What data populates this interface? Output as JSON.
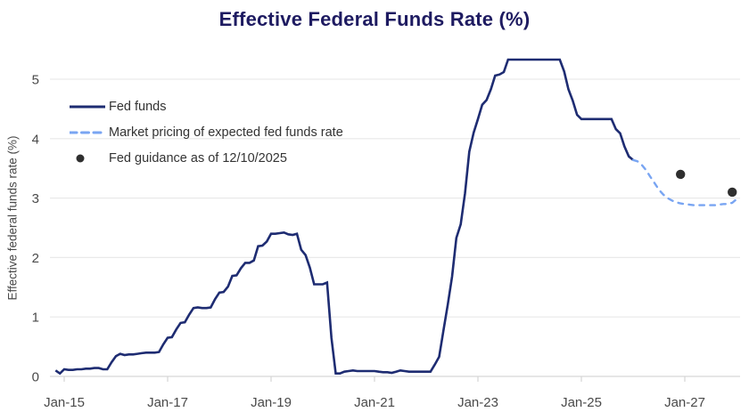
{
  "title": "Effective Federal Funds Rate (%)",
  "y_axis_title": "Effective federal funds rate (%)",
  "legend": {
    "fed_funds": "Fed funds",
    "market_pricing": "Market pricing of expected fed funds rate",
    "fed_guidance": "Fed guidance as of 12/10/2025"
  },
  "colors": {
    "title": "#1e1b61",
    "fed_funds_line": "#1e2c72",
    "market_pricing_line": "#79a5f2",
    "guidance_dot": "#2f2f2f",
    "grid": "#e9e9e9",
    "axis": "#d6d6d6",
    "axis_text": "#4a4a4a"
  },
  "chart_data": {
    "type": "line",
    "title": "Effective Federal Funds Rate (%)",
    "xlabel": "",
    "ylabel": "Effective federal funds rate (%)",
    "ylim": [
      0,
      5.5
    ],
    "x_range": [
      "Nov-2014",
      "Jan-2028"
    ],
    "grid": "horizontal",
    "legend_position": "top-left-inside",
    "x_ticks": [
      {
        "label": "Jan-15",
        "t": 0
      },
      {
        "label": "Jan-17",
        "t": 2
      },
      {
        "label": "Jan-19",
        "t": 4
      },
      {
        "label": "Jan-21",
        "t": 6
      },
      {
        "label": "Jan-23",
        "t": 8
      },
      {
        "label": "Jan-25",
        "t": 10
      },
      {
        "label": "Jan-27",
        "t": 12
      }
    ],
    "y_ticks": [
      0,
      1,
      2,
      3,
      4,
      5
    ],
    "series": [
      {
        "name": "Fed funds",
        "style": "solid",
        "color": "#1e2c72",
        "start": "2014-11",
        "frequency": "monthly",
        "values": [
          0.1,
          0.05,
          0.12,
          0.11,
          0.11,
          0.12,
          0.12,
          0.13,
          0.13,
          0.14,
          0.14,
          0.12,
          0.12,
          0.24,
          0.34,
          0.38,
          0.36,
          0.37,
          0.37,
          0.38,
          0.39,
          0.4,
          0.4,
          0.4,
          0.41,
          0.54,
          0.65,
          0.66,
          0.79,
          0.9,
          0.91,
          1.04,
          1.15,
          1.16,
          1.15,
          1.15,
          1.16,
          1.3,
          1.41,
          1.42,
          1.51,
          1.69,
          1.7,
          1.82,
          1.91,
          1.91,
          1.95,
          2.19,
          2.2,
          2.27,
          2.4,
          2.4,
          2.41,
          2.42,
          2.39,
          2.38,
          2.4,
          2.13,
          2.04,
          1.83,
          1.55,
          1.55,
          1.55,
          1.58,
          0.65,
          0.05,
          0.05,
          0.08,
          0.09,
          0.1,
          0.09,
          0.09,
          0.09,
          0.09,
          0.09,
          0.08,
          0.07,
          0.07,
          0.06,
          0.08,
          0.1,
          0.09,
          0.08,
          0.08,
          0.08,
          0.08,
          0.08,
          0.08,
          0.2,
          0.33,
          0.77,
          1.21,
          1.68,
          2.33,
          2.56,
          3.08,
          3.78,
          4.1,
          4.33,
          4.57,
          4.65,
          4.83,
          5.06,
          5.08,
          5.12,
          5.33,
          5.33,
          5.33,
          5.33,
          5.33,
          5.33,
          5.33,
          5.33,
          5.33,
          5.33,
          5.33,
          5.33,
          5.33,
          5.13,
          4.83,
          4.64,
          4.4,
          4.33,
          4.33,
          4.33,
          4.33,
          4.33,
          4.33,
          4.33,
          4.33,
          4.16,
          4.09,
          3.87,
          3.7,
          3.64
        ]
      },
      {
        "name": "Market pricing of expected fed funds rate",
        "style": "dashed",
        "color": "#79a5f2",
        "start": "2026-01",
        "frequency": "monthly",
        "values": [
          3.64,
          3.62,
          3.56,
          3.47,
          3.36,
          3.25,
          3.14,
          3.06,
          3.0,
          2.96,
          2.93,
          2.91,
          2.9,
          2.89,
          2.88,
          2.88,
          2.88,
          2.88,
          2.88,
          2.88,
          2.89,
          2.9,
          2.9,
          2.92,
          2.98
        ]
      },
      {
        "name": "Fed guidance as of 12/10/2025",
        "style": "points",
        "color": "#2f2f2f",
        "points": [
          {
            "date": "2026-12",
            "value": 3.4
          },
          {
            "date": "2027-12",
            "value": 3.1
          }
        ]
      }
    ]
  }
}
